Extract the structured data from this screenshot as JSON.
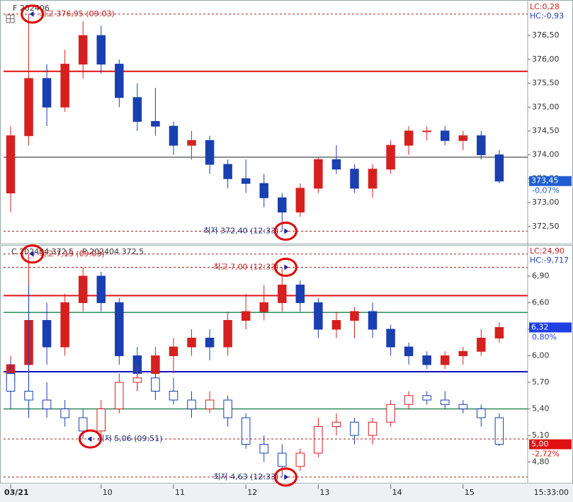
{
  "chart_data": [
    {
      "type": "candlestick",
      "x": [
        8.75,
        9.0,
        9.25,
        9.5,
        9.75,
        10.0,
        10.25,
        10.5,
        10.75,
        11.0,
        11.25,
        11.5,
        11.75,
        12.0,
        12.25,
        12.5,
        12.75,
        13.0,
        13.25,
        13.5,
        13.75,
        14.0,
        14.25,
        14.5,
        14.75,
        15.0,
        15.25,
        15.5
      ],
      "xlim": [
        8.75,
        15.55
      ],
      "ylim": [
        372.2,
        377.17
      ],
      "yticks": [
        {
          "value": 372.5,
          "label": "372,50"
        },
        {
          "value": 373,
          "label": "373,00"
        },
        {
          "value": 373.5,
          "label": "373,50"
        },
        {
          "value": 374,
          "label": "374,00"
        },
        {
          "value": 374.5,
          "label": "374,50"
        },
        {
          "value": 375,
          "label": "375,00"
        },
        {
          "value": 375.5,
          "label": "375,50"
        },
        {
          "value": 376,
          "label": "376,00"
        },
        {
          "value": 376.5,
          "label": "376,50"
        }
      ],
      "up_color": "#d62020",
      "down_color": "#1a3fb0",
      "series": [
        {
          "name": "F 202406",
          "hollow": false,
          "open": [
            373.2,
            374.4,
            375.6,
            375.0,
            375.9,
            376.5,
            375.9,
            375.2,
            374.7,
            374.6,
            374.2,
            374.3,
            373.8,
            373.5,
            373.4,
            373.1,
            372.8,
            373.3,
            373.9,
            373.7,
            373.3,
            373.7,
            374.2,
            374.5,
            374.5,
            374.3,
            374.4,
            374.0
          ],
          "high": [
            374.6,
            376.95,
            375.9,
            376.2,
            376.8,
            376.7,
            376.0,
            375.5,
            375.4,
            374.7,
            374.5,
            374.4,
            373.9,
            373.9,
            373.6,
            373.2,
            373.4,
            373.95,
            374.2,
            373.8,
            373.8,
            374.3,
            374.6,
            374.6,
            374.6,
            374.5,
            374.5,
            374.1
          ],
          "low": [
            372.8,
            374.2,
            374.6,
            374.9,
            375.6,
            375.7,
            375.0,
            374.5,
            374.4,
            374.0,
            373.9,
            373.6,
            373.3,
            373.2,
            372.9,
            372.4,
            372.7,
            373.2,
            373.6,
            373.2,
            373.1,
            373.6,
            374.0,
            374.3,
            374.2,
            374.1,
            373.9,
            373.4
          ],
          "close": [
            374.4,
            375.6,
            375.0,
            375.9,
            376.5,
            375.9,
            375.2,
            374.7,
            374.6,
            374.2,
            374.3,
            373.8,
            373.5,
            373.4,
            373.1,
            372.8,
            373.3,
            373.9,
            373.7,
            373.3,
            373.7,
            374.2,
            374.5,
            374.5,
            374.3,
            374.4,
            374.0,
            373.45
          ],
          "price_label": "373,45",
          "change_label": "-0,07%",
          "box_color": "#1f5fd0"
        }
      ],
      "levels": [
        {
          "value": 375.75,
          "color": "#e01010",
          "width": 2
        },
        {
          "value": 373.95,
          "color": "#222222",
          "width": 1
        }
      ],
      "annotations": [
        {
          "label": "최고 376,95 (09:03)",
          "value": 376.95,
          "x": 9.05
        },
        {
          "label": "최저 372,40 (12:33)",
          "value": 372.4,
          "x": 12.55
        }
      ],
      "lc_label": "LC:0,28",
      "hc_label": "HC:-0,93"
    },
    {
      "type": "candlestick",
      "x": [
        8.75,
        9.0,
        9.25,
        9.5,
        9.75,
        10.0,
        10.25,
        10.5,
        10.75,
        11.0,
        11.25,
        11.5,
        11.75,
        12.0,
        12.25,
        12.5,
        12.75,
        13.0,
        13.25,
        13.5,
        13.75,
        14.0,
        14.25,
        14.5,
        14.75,
        15.0,
        15.25,
        15.5
      ],
      "xlim": [
        8.75,
        15.55
      ],
      "xticks": [
        {
          "value": 8.75,
          "label": "03/21"
        },
        10,
        11,
        12,
        13,
        14,
        15
      ],
      "time_label": "15:33:00",
      "ylim": [
        4.58,
        7.22
      ],
      "yticks": [
        {
          "value": 4.8,
          "label": "4,80"
        },
        {
          "value": 5.1,
          "label": "5,10"
        },
        {
          "value": 5.4,
          "label": "5,40"
        },
        {
          "value": 5.7,
          "label": "5,70"
        },
        {
          "value": 6,
          "label": "6,00"
        },
        {
          "value": 6.3,
          "label": "6,30"
        },
        {
          "value": 6.6,
          "label": "6,60"
        },
        {
          "value": 6.9,
          "label": "6,90"
        }
      ],
      "up_color": "#d62020",
      "down_color": "#1a3fb0",
      "series": [
        {
          "name": "C 202404 372,5",
          "hollow": false,
          "open": [
            5.7,
            5.9,
            6.4,
            6.1,
            6.6,
            6.9,
            6.6,
            6.0,
            5.8,
            6.0,
            6.1,
            6.2,
            6.1,
            6.4,
            6.5,
            6.6,
            6.8,
            6.6,
            6.3,
            6.4,
            6.5,
            6.3,
            6.1,
            6.0,
            5.9,
            6.0,
            6.05,
            6.2
          ],
          "high": [
            6.0,
            7.15,
            6.6,
            6.7,
            7.0,
            6.95,
            6.65,
            6.1,
            6.1,
            6.2,
            6.3,
            6.3,
            6.5,
            6.7,
            6.8,
            7.0,
            6.85,
            6.65,
            6.5,
            6.55,
            6.6,
            6.35,
            6.15,
            6.05,
            6.05,
            6.1,
            6.3,
            6.38
          ],
          "low": [
            5.4,
            5.7,
            5.9,
            6.0,
            6.5,
            6.5,
            5.9,
            5.6,
            5.7,
            5.8,
            6.0,
            5.95,
            6.0,
            6.3,
            6.4,
            6.5,
            6.5,
            6.2,
            6.2,
            6.2,
            6.2,
            6.0,
            5.9,
            5.85,
            5.85,
            5.9,
            6.0,
            6.15
          ],
          "close": [
            5.9,
            6.4,
            6.1,
            6.6,
            6.9,
            6.6,
            6.0,
            5.8,
            6.0,
            6.1,
            6.2,
            6.1,
            6.4,
            6.5,
            6.6,
            6.8,
            6.6,
            6.3,
            6.4,
            6.5,
            6.3,
            6.1,
            6.0,
            5.9,
            6.0,
            6.05,
            6.2,
            6.32
          ],
          "price_label": "6,32",
          "change_label": "0,80%",
          "box_color": "#1f3fe0"
        },
        {
          "name": "P 202404 372,5",
          "hollow": true,
          "open": [
            5.8,
            5.6,
            5.5,
            5.4,
            5.3,
            5.15,
            5.4,
            5.7,
            5.75,
            5.6,
            5.5,
            5.4,
            5.5,
            5.3,
            5.0,
            4.9,
            4.75,
            4.9,
            5.2,
            5.25,
            5.1,
            5.25,
            5.45,
            5.55,
            5.5,
            5.45,
            5.4,
            5.3
          ],
          "high": [
            5.95,
            6.8,
            5.7,
            5.5,
            5.4,
            5.5,
            5.8,
            5.9,
            5.8,
            5.75,
            5.6,
            5.6,
            5.55,
            5.35,
            5.1,
            5.0,
            4.95,
            5.3,
            5.35,
            5.3,
            5.3,
            5.5,
            5.6,
            5.6,
            5.6,
            5.5,
            5.45,
            5.35
          ],
          "low": [
            5.4,
            5.3,
            5.3,
            5.2,
            5.06,
            5.1,
            5.35,
            5.6,
            5.5,
            5.45,
            5.3,
            5.35,
            5.2,
            4.95,
            4.8,
            4.63,
            4.7,
            4.85,
            5.1,
            5.0,
            5.0,
            5.2,
            5.4,
            5.45,
            5.4,
            5.35,
            5.2,
            4.98
          ],
          "close": [
            5.6,
            5.5,
            5.4,
            5.3,
            5.15,
            5.4,
            5.7,
            5.75,
            5.6,
            5.5,
            5.4,
            5.5,
            5.3,
            5.0,
            4.9,
            4.75,
            4.9,
            5.2,
            5.25,
            5.1,
            5.25,
            5.45,
            5.55,
            5.5,
            5.45,
            5.4,
            5.3,
            5.0
          ],
          "price_label": "5,00",
          "change_label": "-2,72%",
          "box_color": "#e01010"
        }
      ],
      "levels": [
        {
          "value": 6.68,
          "color": "#e01010",
          "width": 2
        },
        {
          "value": 6.49,
          "color": "#2e8b57",
          "width": 1.5
        },
        {
          "value": 5.82,
          "color": "#1010c0",
          "width": 2
        },
        {
          "value": 5.4,
          "color": "#2e8b57",
          "width": 1.5
        }
      ],
      "annotations": [
        {
          "label": "최고 7,15 (09:03)",
          "value": 7.15,
          "x": 9.05
        },
        {
          "label": "최고 7,00 (12:33)",
          "value": 7.0,
          "x": 12.55
        },
        {
          "label": "최저 5,06 (09:51)",
          "value": 5.06,
          "x": 9.85
        },
        {
          "label": "최저 4,63 (12:33)",
          "value": 4.63,
          "x": 12.55
        }
      ],
      "lc_label": "LC:24,90",
      "hc_label": "HC:-9,717"
    }
  ]
}
